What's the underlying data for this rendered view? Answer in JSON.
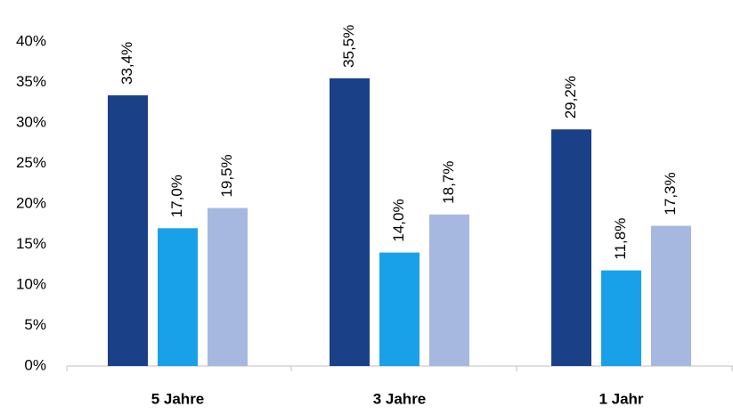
{
  "chart_data": {
    "type": "bar",
    "categories": [
      "5 Jahre",
      "3 Jahre",
      "1 Jahr"
    ],
    "series": [
      {
        "color": "#1a4187",
        "values": [
          33.4,
          35.5,
          29.2
        ],
        "value_labels": [
          "33,4%",
          "35,5%",
          "29,2%"
        ]
      },
      {
        "color": "#18a1e8",
        "values": [
          17.0,
          14.0,
          11.8
        ],
        "value_labels": [
          "17,0%",
          "14,0%",
          "11,8%"
        ]
      },
      {
        "color": "#a7b8e0",
        "values": [
          19.5,
          18.7,
          17.3
        ],
        "value_labels": [
          "19,5%",
          "18,7%",
          "17,3%"
        ]
      }
    ],
    "ylim": [
      0,
      40
    ],
    "yticks": [
      {
        "value": 0,
        "label": "0%"
      },
      {
        "value": 5,
        "label": "5%"
      },
      {
        "value": 10,
        "label": "10%"
      },
      {
        "value": 15,
        "label": "15%"
      },
      {
        "value": 20,
        "label": "20%"
      },
      {
        "value": 25,
        "label": "25%"
      },
      {
        "value": 30,
        "label": "30%"
      },
      {
        "value": 35,
        "label": "35%"
      },
      {
        "value": 40,
        "label": "40%"
      }
    ],
    "grid": false
  }
}
